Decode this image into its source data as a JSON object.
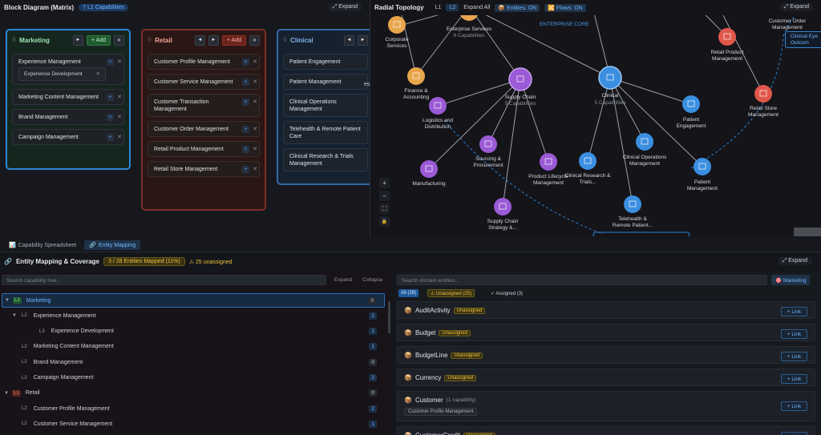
{
  "block": {
    "title": "Block Diagram (Matrix)",
    "caps_badge": "7 L1 Capabilities",
    "expand": "⤢ Expand",
    "columns": [
      {
        "title": "Marketing",
        "add": "+ Add",
        "cards": [
          "Experience Management",
          "Marketing Content Management",
          "Brand Management",
          "Campaign Management"
        ],
        "sub": "Experience Development"
      },
      {
        "title": "Retail",
        "add": "+ Add",
        "cards": [
          "Customer Profile Management",
          "Customer Service Management",
          "Customer Transaction Management",
          "Customer Order Management",
          "Retail Product Management",
          "Retail Store Management"
        ]
      },
      {
        "title": "Clinical",
        "cards": [
          "Patient Engagement",
          "Patient Management",
          "Clinical Operations Management",
          "Telehealth & Remote Patient Care",
          "Clinical Research & Trials Management"
        ]
      }
    ],
    "cut_text": "es"
  },
  "radial": {
    "title": "Radial Topology",
    "l1": "L1",
    "l2": "L2",
    "expand_all": "Expand All",
    "entities": "Entities: ON",
    "flows": "Flows: ON",
    "expand": "⤢ Expand",
    "enterprise_core": "ENTERPRISE CORE",
    "enterprise_services": "Enterprise Services",
    "enterprise_services_sub": "6 Capabilities",
    "corporate_services": "Corporate Services",
    "finance": "Finance & Accounting",
    "logistics": "Logistics and Distribution",
    "supply_chain": "Supply Chain",
    "supply_chain_sub": "5 Capabilities",
    "clinical": "Clinical",
    "clinical_sub": "5 Capabilities",
    "sourcing": "Sourcing & Procurement",
    "manufacturing": "Manufacturing",
    "plm": "Product Lifecycle Management",
    "sc_strategy": "Supply Chain Strategy &...",
    "clin_research": "Clinical Research & Trials...",
    "clin_ops": "Clinical Operations Management",
    "telehealth": "Telehealth & Remote Patient...",
    "patient_engagement": "Patient Engagement",
    "patient_mgmt": "Patient Management",
    "retail_product": "Retail Product Management",
    "retail_store": "Retail Store Management",
    "customer_order": "Customer Order Management",
    "clin_eye": "Clinical Eye Outcom",
    "zoom_in": "+",
    "zoom_out": "−",
    "fit": "⛶",
    "lock": "🔒"
  },
  "tabs": [
    {
      "label": "Capability Spreadsheet",
      "icon": "📊"
    },
    {
      "label": "Entity Mapping",
      "icon": "🔗"
    }
  ],
  "mapping": {
    "title": "Entity Mapping & Coverage",
    "icon": "🔗",
    "mapped": "3 / 28 Entities Mapped (11%)",
    "unassigned": "25 unassigned",
    "expand": "⤢ Expand"
  },
  "tree": {
    "search_placeholder": "Search capability tree...",
    "expand": "Expand",
    "collapse": "Collapse",
    "rows": [
      {
        "arrow": "▼",
        "level": "L1",
        "label": "Marketing",
        "count": "0",
        "kind": "l1g"
      },
      {
        "arrow": "▼",
        "level": "L2",
        "label": "Experience Management",
        "count": "2",
        "kind": "l2"
      },
      {
        "arrow": "",
        "level": "L3",
        "label": "Experience Development",
        "count": "1",
        "kind": "l3"
      },
      {
        "arrow": "",
        "level": "L2",
        "label": "Marketing Content Management",
        "count": "1",
        "kind": "l2"
      },
      {
        "arrow": "",
        "level": "L2",
        "label": "Brand Management",
        "count": "0",
        "kind": "l2"
      },
      {
        "arrow": "",
        "level": "L2",
        "label": "Campaign Management",
        "count": "2",
        "kind": "l2"
      },
      {
        "arrow": "▼",
        "level": "L1",
        "label": "Retail",
        "count": "0",
        "kind": "l1r"
      },
      {
        "arrow": "",
        "level": "L2",
        "label": "Customer Profile Management",
        "count": "2",
        "kind": "l2"
      },
      {
        "arrow": "",
        "level": "L2",
        "label": "Customer Service Management",
        "count": "1",
        "kind": "l2"
      }
    ]
  },
  "entities": {
    "search_placeholder": "Search domain entities...",
    "chip": "🎯 Marketing",
    "filters": {
      "all": "All (28)",
      "unassigned": "⚠ Unassigned (25)",
      "assigned": "✓ Assigned (3)"
    },
    "link": "+ Link",
    "rows": [
      {
        "name": "AuditActivity",
        "badge": "Unassigned"
      },
      {
        "name": "Budget",
        "badge": "Unassigned"
      },
      {
        "name": "BudgetLine",
        "badge": "Unassigned"
      },
      {
        "name": "Currency",
        "badge": "Unassigned"
      },
      {
        "name": "Customer",
        "note": "(1 capability)",
        "sub": "Customer Profile Management"
      },
      {
        "name": "CustomerCredit",
        "badge": "Unassigned"
      }
    ]
  }
}
